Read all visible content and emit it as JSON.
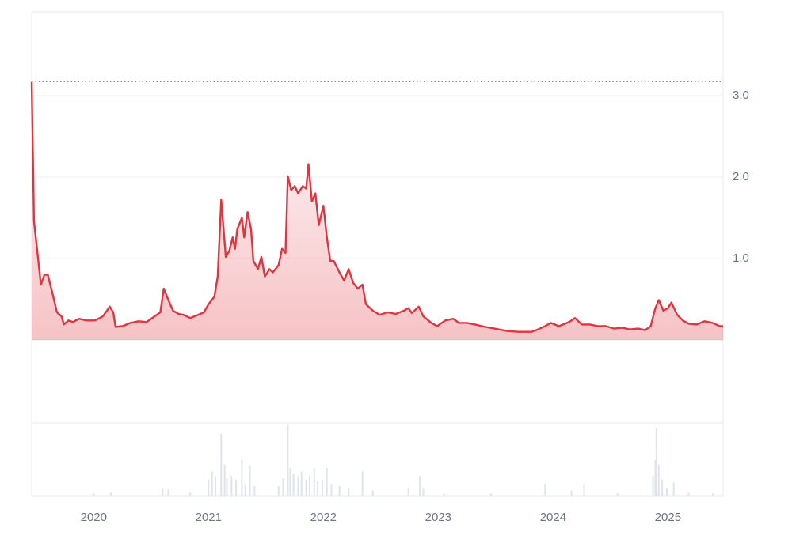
{
  "chart_data": [
    {
      "type": "line",
      "color": "#e0353f",
      "x": [
        2019.46,
        2019.48,
        2019.51,
        2019.54,
        2019.57,
        2019.6,
        2019.64,
        2019.68,
        2019.72,
        2019.74,
        2019.78,
        2019.82,
        2019.87,
        2019.94,
        2020.01,
        2020.08,
        2020.14,
        2020.17,
        2020.19,
        2020.25,
        2020.32,
        2020.39,
        2020.46,
        2020.53,
        2020.58,
        2020.61,
        2020.65,
        2020.69,
        2020.74,
        2020.78,
        2020.84,
        2020.91,
        2020.96,
        2021.0,
        2021.05,
        2021.08,
        2021.11,
        2021.15,
        2021.18,
        2021.21,
        2021.23,
        2021.25,
        2021.29,
        2021.31,
        2021.34,
        2021.37,
        2021.39,
        2021.43,
        2021.46,
        2021.49,
        2021.53,
        2021.56,
        2021.61,
        2021.64,
        2021.67,
        2021.69,
        2021.72,
        2021.75,
        2021.78,
        2021.82,
        2021.85,
        2021.87,
        2021.9,
        2021.93,
        2021.96,
        2022.0,
        2022.03,
        2022.06,
        2022.09,
        2022.14,
        2022.18,
        2022.22,
        2022.26,
        2022.3,
        2022.34,
        2022.37,
        2022.43,
        2022.49,
        2022.56,
        2022.63,
        2022.7,
        2022.74,
        2022.77,
        2022.83,
        2022.87,
        2022.94,
        2022.99,
        2023.06,
        2023.13,
        2023.18,
        2023.25,
        2023.32,
        2023.41,
        2023.49,
        2023.6,
        2023.7,
        2023.81,
        2023.87,
        2023.93,
        2023.98,
        2024.05,
        2024.14,
        2024.19,
        2024.25,
        2024.32,
        2024.39,
        2024.46,
        2024.53,
        2024.6,
        2024.67,
        2024.74,
        2024.8,
        2024.85,
        2024.89,
        2024.92,
        2024.96,
        2025.0,
        2025.03,
        2025.08,
        2025.13,
        2025.18,
        2025.25,
        2025.32,
        2025.39,
        2025.45,
        2025.48
      ],
      "values": [
        3.17,
        1.46,
        1.07,
        0.68,
        0.8,
        0.8,
        0.58,
        0.34,
        0.29,
        0.19,
        0.24,
        0.22,
        0.26,
        0.24,
        0.24,
        0.29,
        0.41,
        0.34,
        0.16,
        0.17,
        0.21,
        0.23,
        0.22,
        0.29,
        0.34,
        0.63,
        0.49,
        0.36,
        0.32,
        0.31,
        0.27,
        0.31,
        0.34,
        0.44,
        0.53,
        0.78,
        1.72,
        1.02,
        1.09,
        1.26,
        1.12,
        1.36,
        1.5,
        1.26,
        1.57,
        1.36,
        0.97,
        0.87,
        1.02,
        0.78,
        0.87,
        0.83,
        0.92,
        1.12,
        1.07,
        2.01,
        1.84,
        1.89,
        1.8,
        1.89,
        1.86,
        2.16,
        1.7,
        1.8,
        1.41,
        1.65,
        1.26,
        0.97,
        0.97,
        0.83,
        0.73,
        0.87,
        0.7,
        0.63,
        0.68,
        0.44,
        0.36,
        0.31,
        0.34,
        0.32,
        0.36,
        0.39,
        0.33,
        0.41,
        0.29,
        0.21,
        0.17,
        0.24,
        0.26,
        0.21,
        0.21,
        0.19,
        0.16,
        0.14,
        0.11,
        0.1,
        0.1,
        0.13,
        0.17,
        0.21,
        0.17,
        0.22,
        0.27,
        0.19,
        0.19,
        0.17,
        0.17,
        0.14,
        0.15,
        0.13,
        0.14,
        0.12,
        0.17,
        0.39,
        0.49,
        0.36,
        0.39,
        0.46,
        0.31,
        0.24,
        0.2,
        0.19,
        0.23,
        0.21,
        0.17,
        0.17
      ],
      "xlim": [
        2019.46,
        2025.48
      ],
      "ylim": [
        0,
        4.03
      ],
      "yticks": [
        {
          "value": 1,
          "label": "1.0"
        },
        {
          "value": 2,
          "label": "2.0"
        },
        {
          "value": 3,
          "label": "3.0"
        }
      ],
      "grid": true
    },
    {
      "type": "bar",
      "color": "#dfe3ea",
      "x": [
        2020.0,
        2020.15,
        2020.6,
        2020.65,
        2020.84,
        2021.0,
        2021.03,
        2021.06,
        2021.11,
        2021.14,
        2021.16,
        2021.2,
        2021.24,
        2021.29,
        2021.32,
        2021.36,
        2021.4,
        2021.61,
        2021.65,
        2021.69,
        2021.71,
        2021.74,
        2021.78,
        2021.81,
        2021.85,
        2021.88,
        2021.92,
        2021.95,
        2021.99,
        2022.03,
        2022.07,
        2022.14,
        2022.22,
        2022.34,
        2022.43,
        2022.74,
        2022.84,
        2022.87,
        2023.05,
        2023.46,
        2023.93,
        2024.16,
        2024.27,
        2024.56,
        2024.87,
        2024.89,
        2024.9,
        2024.92,
        2024.95,
        2024.99,
        2025.05,
        2025.18,
        2025.39
      ],
      "values": [
        3,
        5,
        11,
        9,
        5,
        22,
        33,
        27,
        85,
        43,
        24,
        27,
        22,
        49,
        16,
        41,
        13,
        13,
        24,
        98,
        38,
        30,
        27,
        33,
        22,
        27,
        38,
        20,
        22,
        38,
        16,
        13,
        11,
        33,
        7,
        11,
        27,
        11,
        4,
        3,
        16,
        7,
        15,
        4,
        27,
        49,
        93,
        43,
        22,
        11,
        18,
        5,
        3
      ],
      "xlim": [
        2019.46,
        2025.48
      ],
      "ylim": [
        0,
        100
      ],
      "xticks": [
        2020,
        2021,
        2022,
        2023,
        2024,
        2025
      ]
    }
  ]
}
